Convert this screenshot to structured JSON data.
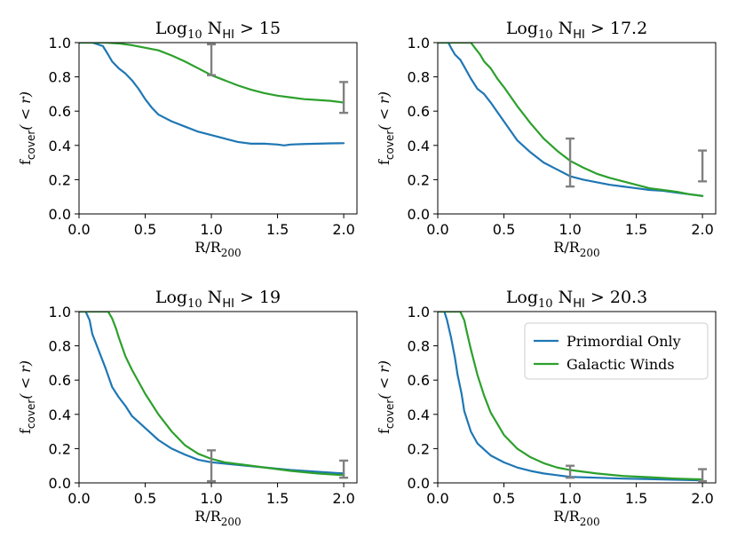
{
  "colors": {
    "primordial": "#1f77b4",
    "winds": "#2ca02c",
    "errorbar": "#808080"
  },
  "legend": {
    "placement": "top-right",
    "panel_index": 3
  },
  "chart_data": [
    {
      "type": "line",
      "title": {
        "base": "Log",
        "sub": "10",
        "mid": " N",
        "sub2": "HI",
        "tail": " > 15"
      },
      "xlabel": {
        "base": "R/R",
        "sub": "200"
      },
      "ylabel": {
        "base": "f",
        "sub": "cover",
        "tail": "( < r)"
      },
      "xlim": [
        0,
        2.1
      ],
      "ylim": [
        0,
        1.0
      ],
      "xticks": [
        0.0,
        0.5,
        1.0,
        1.5,
        2.0
      ],
      "xtick_labels": [
        "0.0",
        "0.5",
        "1.0",
        "1.5",
        "2.0"
      ],
      "yticks": [
        0.0,
        0.2,
        0.4,
        0.6,
        0.8,
        1.0
      ],
      "ytick_labels": [
        "0.0",
        "0.2",
        "0.4",
        "0.6",
        "0.8",
        "1.0"
      ],
      "series": [
        {
          "name": "Primordial Only",
          "color": "#1f77b4",
          "x": [
            0.0,
            0.1,
            0.18,
            0.22,
            0.25,
            0.3,
            0.35,
            0.4,
            0.45,
            0.5,
            0.55,
            0.6,
            0.65,
            0.7,
            0.8,
            0.9,
            1.0,
            1.1,
            1.2,
            1.3,
            1.4,
            1.5,
            1.55,
            1.6,
            1.7,
            1.8,
            1.9,
            2.0
          ],
          "y": [
            1.0,
            1.0,
            0.98,
            0.93,
            0.89,
            0.85,
            0.82,
            0.78,
            0.73,
            0.67,
            0.62,
            0.58,
            0.56,
            0.54,
            0.51,
            0.48,
            0.46,
            0.44,
            0.42,
            0.41,
            0.41,
            0.405,
            0.4,
            0.405,
            0.408,
            0.41,
            0.412,
            0.413
          ]
        },
        {
          "name": "Galactic Winds",
          "color": "#2ca02c",
          "x": [
            0.0,
            0.2,
            0.3,
            0.4,
            0.5,
            0.6,
            0.7,
            0.8,
            0.9,
            1.0,
            1.1,
            1.2,
            1.3,
            1.4,
            1.5,
            1.6,
            1.7,
            1.8,
            1.9,
            2.0
          ],
          "y": [
            1.0,
            1.0,
            0.995,
            0.985,
            0.97,
            0.955,
            0.925,
            0.89,
            0.85,
            0.81,
            0.78,
            0.75,
            0.725,
            0.705,
            0.69,
            0.68,
            0.67,
            0.665,
            0.66,
            0.65
          ]
        }
      ],
      "error_bars": [
        {
          "x": 1.0,
          "low": 0.81,
          "high": 0.99
        },
        {
          "x": 2.0,
          "low": 0.59,
          "high": 0.77
        }
      ]
    },
    {
      "type": "line",
      "title": {
        "base": "Log",
        "sub": "10",
        "mid": " N",
        "sub2": "HI",
        "tail": " > 17.2"
      },
      "xlabel": {
        "base": "R/R",
        "sub": "200"
      },
      "ylabel": {
        "base": "f",
        "sub": "cover",
        "tail": "( < r)"
      },
      "xlim": [
        0,
        2.1
      ],
      "ylim": [
        0,
        1.0
      ],
      "xticks": [
        0.0,
        0.5,
        1.0,
        1.5,
        2.0
      ],
      "xtick_labels": [
        "0.0",
        "0.5",
        "1.0",
        "1.5",
        "2.0"
      ],
      "yticks": [
        0.0,
        0.2,
        0.4,
        0.6,
        0.8,
        1.0
      ],
      "ytick_labels": [
        "0.0",
        "0.2",
        "0.4",
        "0.6",
        "0.8",
        "1.0"
      ],
      "series": [
        {
          "name": "Primordial Only",
          "color": "#1f77b4",
          "x": [
            0.0,
            0.08,
            0.1,
            0.13,
            0.17,
            0.2,
            0.25,
            0.3,
            0.35,
            0.4,
            0.5,
            0.6,
            0.7,
            0.8,
            0.9,
            1.0,
            1.1,
            1.2,
            1.3,
            1.4,
            1.5,
            1.6,
            1.7,
            1.8,
            1.9,
            2.0
          ],
          "y": [
            1.0,
            1.0,
            0.97,
            0.93,
            0.9,
            0.86,
            0.79,
            0.73,
            0.7,
            0.65,
            0.54,
            0.43,
            0.36,
            0.3,
            0.26,
            0.22,
            0.2,
            0.185,
            0.17,
            0.16,
            0.15,
            0.14,
            0.135,
            0.125,
            0.115,
            0.105
          ]
        },
        {
          "name": "Galactic Winds",
          "color": "#2ca02c",
          "x": [
            0.0,
            0.25,
            0.28,
            0.32,
            0.35,
            0.4,
            0.45,
            0.5,
            0.6,
            0.7,
            0.8,
            0.9,
            1.0,
            1.1,
            1.2,
            1.3,
            1.4,
            1.5,
            1.6,
            1.7,
            1.8,
            1.9,
            2.0
          ],
          "y": [
            1.0,
            1.0,
            0.97,
            0.93,
            0.89,
            0.85,
            0.79,
            0.74,
            0.63,
            0.53,
            0.44,
            0.37,
            0.31,
            0.27,
            0.235,
            0.21,
            0.19,
            0.17,
            0.15,
            0.14,
            0.13,
            0.115,
            0.105
          ]
        }
      ],
      "error_bars": [
        {
          "x": 1.0,
          "low": 0.16,
          "high": 0.44
        },
        {
          "x": 2.0,
          "low": 0.19,
          "high": 0.37
        }
      ]
    },
    {
      "type": "line",
      "title": {
        "base": "Log",
        "sub": "10",
        "mid": " N",
        "sub2": "HI",
        "tail": " > 19"
      },
      "xlabel": {
        "base": "R/R",
        "sub": "200"
      },
      "ylabel": {
        "base": "f",
        "sub": "cover",
        "tail": "( < r)"
      },
      "xlim": [
        0,
        2.1
      ],
      "ylim": [
        0,
        1.0
      ],
      "xticks": [
        0.0,
        0.5,
        1.0,
        1.5,
        2.0
      ],
      "xtick_labels": [
        "0.0",
        "0.5",
        "1.0",
        "1.5",
        "2.0"
      ],
      "yticks": [
        0.0,
        0.2,
        0.4,
        0.6,
        0.8,
        1.0
      ],
      "ytick_labels": [
        "0.0",
        "0.2",
        "0.4",
        "0.6",
        "0.8",
        "1.0"
      ],
      "series": [
        {
          "name": "Primordial Only",
          "color": "#1f77b4",
          "x": [
            0.0,
            0.05,
            0.08,
            0.1,
            0.15,
            0.2,
            0.25,
            0.3,
            0.35,
            0.4,
            0.5,
            0.6,
            0.7,
            0.8,
            0.9,
            1.0,
            1.2,
            1.4,
            1.6,
            1.8,
            2.0
          ],
          "y": [
            1.0,
            1.0,
            0.95,
            0.87,
            0.77,
            0.67,
            0.56,
            0.5,
            0.45,
            0.39,
            0.32,
            0.25,
            0.2,
            0.165,
            0.135,
            0.12,
            0.105,
            0.09,
            0.075,
            0.065,
            0.055
          ]
        },
        {
          "name": "Galactic Winds",
          "color": "#2ca02c",
          "x": [
            0.0,
            0.22,
            0.25,
            0.28,
            0.3,
            0.35,
            0.4,
            0.5,
            0.6,
            0.7,
            0.8,
            0.9,
            1.0,
            1.1,
            1.2,
            1.4,
            1.6,
            1.8,
            2.0
          ],
          "y": [
            1.0,
            1.0,
            0.96,
            0.9,
            0.85,
            0.74,
            0.66,
            0.52,
            0.4,
            0.3,
            0.22,
            0.17,
            0.14,
            0.12,
            0.11,
            0.09,
            0.07,
            0.055,
            0.045
          ]
        }
      ],
      "error_bars": [
        {
          "x": 1.0,
          "low": 0.01,
          "high": 0.19
        },
        {
          "x": 2.0,
          "low": 0.03,
          "high": 0.13
        }
      ]
    },
    {
      "type": "line",
      "title": {
        "base": "Log",
        "sub": "10",
        "mid": " N",
        "sub2": "HI",
        "tail": " > 20.3"
      },
      "xlabel": {
        "base": "R/R",
        "sub": "200"
      },
      "ylabel": {
        "base": "f",
        "sub": "cover",
        "tail": "( < r)"
      },
      "xlim": [
        0,
        2.1
      ],
      "ylim": [
        0,
        1.0
      ],
      "xticks": [
        0.0,
        0.5,
        1.0,
        1.5,
        2.0
      ],
      "xtick_labels": [
        "0.0",
        "0.5",
        "1.0",
        "1.5",
        "2.0"
      ],
      "yticks": [
        0.0,
        0.2,
        0.4,
        0.6,
        0.8,
        1.0
      ],
      "ytick_labels": [
        "0.0",
        "0.2",
        "0.4",
        "0.6",
        "0.8",
        "1.0"
      ],
      "series": [
        {
          "name": "Primordial Only",
          "color": "#1f77b4",
          "x": [
            0.0,
            0.05,
            0.07,
            0.1,
            0.13,
            0.15,
            0.18,
            0.2,
            0.25,
            0.3,
            0.4,
            0.5,
            0.6,
            0.7,
            0.8,
            0.9,
            1.0,
            1.2,
            1.4,
            1.6,
            1.8,
            2.0
          ],
          "y": [
            1.0,
            1.0,
            0.95,
            0.85,
            0.73,
            0.63,
            0.52,
            0.42,
            0.3,
            0.23,
            0.16,
            0.12,
            0.09,
            0.07,
            0.055,
            0.045,
            0.035,
            0.03,
            0.025,
            0.022,
            0.018,
            0.015
          ]
        },
        {
          "name": "Galactic Winds",
          "color": "#2ca02c",
          "x": [
            0.0,
            0.17,
            0.2,
            0.22,
            0.25,
            0.3,
            0.35,
            0.4,
            0.5,
            0.6,
            0.7,
            0.8,
            0.9,
            1.0,
            1.2,
            1.4,
            1.6,
            1.8,
            2.0
          ],
          "y": [
            1.0,
            1.0,
            0.95,
            0.88,
            0.78,
            0.63,
            0.51,
            0.41,
            0.28,
            0.2,
            0.15,
            0.115,
            0.09,
            0.075,
            0.055,
            0.04,
            0.033,
            0.025,
            0.02
          ]
        }
      ],
      "error_bars": [
        {
          "x": 1.0,
          "low": 0.03,
          "high": 0.1
        },
        {
          "x": 2.0,
          "low": 0.01,
          "high": 0.08
        }
      ]
    }
  ]
}
